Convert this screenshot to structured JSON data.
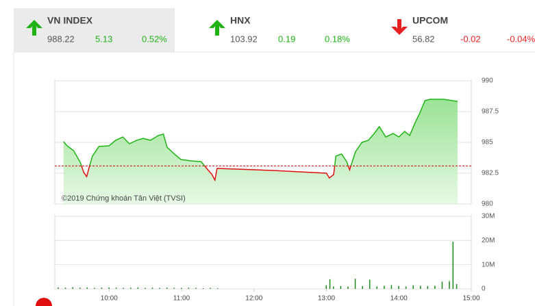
{
  "indices": [
    {
      "name": "VN INDEX",
      "value": "988.22",
      "change": "5.13",
      "percent": "0.52%",
      "direction": "up",
      "color": "#1fb316"
    },
    {
      "name": "HNX",
      "value": "103.92",
      "change": "0.19",
      "percent": "0.18%",
      "direction": "up",
      "color": "#1fb316"
    },
    {
      "name": "UPCOM",
      "value": "56.82",
      "change": "-0.02",
      "percent": "-0.04%",
      "direction": "down",
      "color": "#e81f1f"
    }
  ],
  "chart_data": [
    {
      "type": "line",
      "annotation": "©2019 Chứng khoán Tân Việt (TVSI)",
      "reference": 983.09,
      "up_color": "#1fb316",
      "down_color": "#e01010",
      "x": [
        9.37,
        9.42,
        9.51,
        9.6,
        9.65,
        9.69,
        9.73,
        9.77,
        9.86,
        10.0,
        10.09,
        10.19,
        10.28,
        10.38,
        10.47,
        10.57,
        10.68,
        10.75,
        10.8,
        10.9,
        10.99,
        11.13,
        11.27,
        11.34,
        11.42,
        11.46,
        11.49,
        11.79,
        12.26,
        13.0,
        13.04,
        13.1,
        13.13,
        13.21,
        13.28,
        13.32,
        13.4,
        13.49,
        13.58,
        13.66,
        13.73,
        13.82,
        13.92,
        14.0,
        14.08,
        14.15,
        14.23,
        14.29,
        14.36,
        14.43,
        14.62,
        14.81
      ],
      "values": [
        985.06,
        984.72,
        984.33,
        983.4,
        982.56,
        982.22,
        983.1,
        983.9,
        984.67,
        984.72,
        985.17,
        985.44,
        984.89,
        985.17,
        985.33,
        985.17,
        985.56,
        985.67,
        984.61,
        984.06,
        983.61,
        983.5,
        983.44,
        982.94,
        982.39,
        981.94,
        982.89,
        982.83,
        982.72,
        982.5,
        982.11,
        982.39,
        983.89,
        984.06,
        983.44,
        982.78,
        984.22,
        985.0,
        985.17,
        985.72,
        986.28,
        985.44,
        985.72,
        985.44,
        985.89,
        985.56,
        986.67,
        987.39,
        988.39,
        988.5,
        988.5,
        988.33
      ],
      "xlim": [
        9.25,
        15
      ],
      "ylim": [
        980,
        990
      ],
      "yticks": [
        990,
        {
          "value": 987.5,
          "label": "987.5"
        },
        985,
        {
          "value": 982.5,
          "label": "982.5"
        },
        980
      ],
      "grid": true
    },
    {
      "type": "bar",
      "color": "#1a8a1a",
      "x": [
        9.3,
        9.4,
        9.5,
        9.6,
        9.7,
        9.8,
        9.9,
        10.0,
        10.1,
        10.2,
        10.3,
        10.4,
        10.5,
        10.6,
        10.7,
        10.8,
        10.9,
        11.0,
        11.1,
        11.2,
        11.3,
        11.4,
        11.5,
        13.0,
        13.05,
        13.1,
        13.2,
        13.3,
        13.4,
        13.5,
        13.6,
        13.7,
        13.8,
        13.9,
        14.0,
        14.1,
        14.2,
        14.3,
        14.4,
        14.5,
        14.6,
        14.7,
        14.75,
        14.8
      ],
      "values": [
        600000,
        500000,
        700000,
        500000,
        600000,
        400000,
        500000,
        600000,
        500000,
        400000,
        500000,
        600000,
        400000,
        500000,
        400000,
        500000,
        400000,
        400000,
        500000,
        400000,
        300000,
        400000,
        300000,
        1500000,
        4000000,
        1000000,
        1200000,
        1000000,
        4200000,
        1200000,
        3800000,
        1000000,
        1300000,
        1600000,
        1200000,
        1000000,
        1500000,
        1300000,
        1200000,
        1300000,
        3000000,
        3200000,
        19500000,
        2000000
      ],
      "xlim": [
        9.25,
        15
      ],
      "xticks": [
        {
          "value": 10,
          "label": "10:00"
        },
        {
          "value": 11,
          "label": "11:00"
        },
        {
          "value": 12,
          "label": "12:00"
        },
        {
          "value": 13,
          "label": "13:00"
        },
        {
          "value": 14,
          "label": "14:00"
        },
        {
          "value": 15,
          "label": "15:00"
        }
      ],
      "ylim": [
        0,
        30000000
      ],
      "yticks": [
        0,
        {
          "value": 10000000,
          "label": "10M"
        },
        {
          "value": 20000000,
          "label": "20M"
        },
        {
          "value": 30000000,
          "label": "30M"
        }
      ],
      "grid": true
    }
  ]
}
